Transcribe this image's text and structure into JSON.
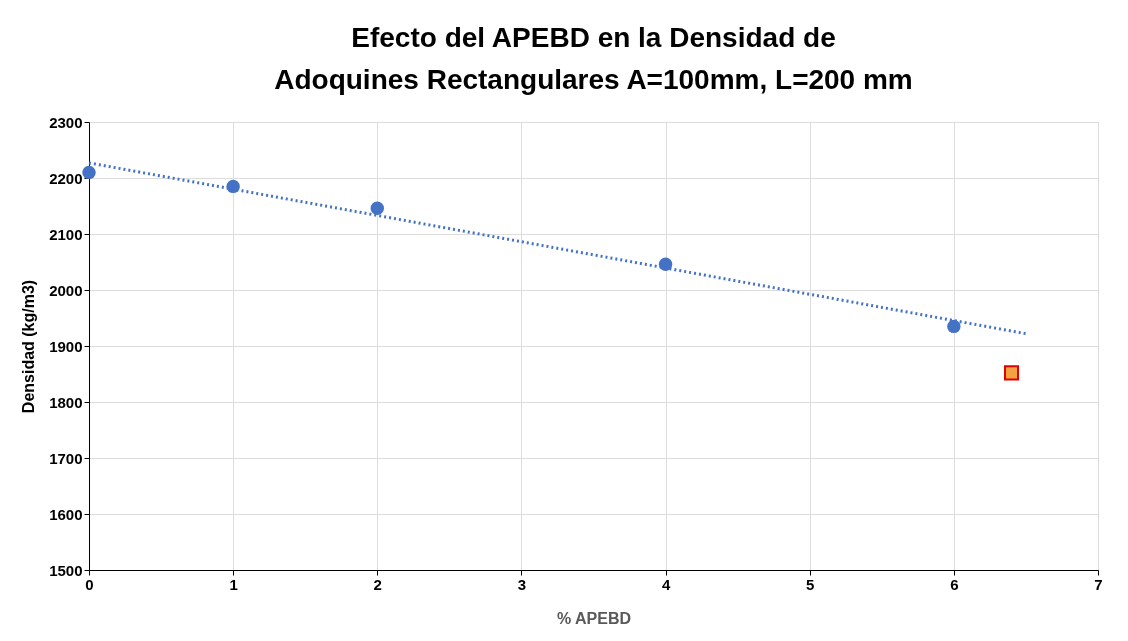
{
  "chart_data": {
    "type": "scatter",
    "title": "Efecto del APEBD en la Densidad de Adoquines Rectangulares A=100mm, L=200 mm",
    "xlabel": "% APEBD",
    "ylabel": "Densidad  (kg/m3)",
    "xlim": [
      0,
      7
    ],
    "xticks": [
      0,
      1,
      2,
      3,
      4,
      5,
      6,
      7
    ],
    "ylim": [
      1500,
      2300
    ],
    "yticks": [
      1500,
      1600,
      1700,
      1800,
      1900,
      2000,
      2100,
      2200,
      2300
    ],
    "grid": true,
    "series": [
      {
        "marker": "circle",
        "color": "#4472c4",
        "x": [
          0,
          1,
          2,
          4,
          6
        ],
        "values": [
          2210,
          2185,
          2146,
          2046,
          1935
        ]
      },
      {
        "type": "line",
        "line_style": "dotted",
        "color": "#4472c4",
        "x": [
          0,
          6.5
        ],
        "values": [
          2227,
          1922
        ]
      },
      {
        "marker": "square",
        "color": "#f4a142",
        "x": [
          6.4
        ],
        "values": [
          1852
        ]
      }
    ]
  }
}
